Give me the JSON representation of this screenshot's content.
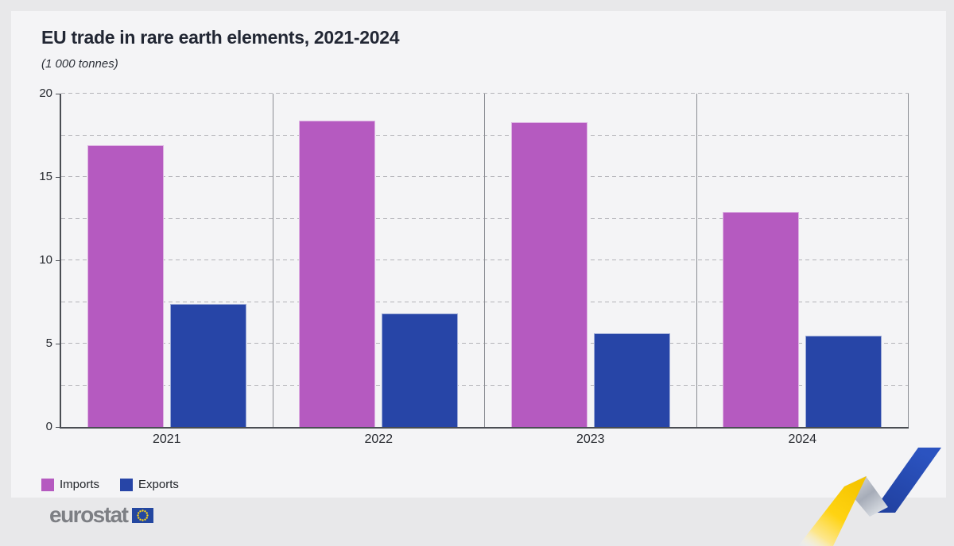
{
  "header": {
    "title": "EU trade in rare earth elements, 2021-2024",
    "subtitle": "(1 000 tonnes)"
  },
  "chart_data": {
    "type": "bar",
    "categories": [
      "2021",
      "2022",
      "2023",
      "2024"
    ],
    "series": [
      {
        "name": "Imports",
        "color": "#b55ac0",
        "values": [
          16.9,
          18.4,
          18.3,
          12.9
        ]
      },
      {
        "name": "Exports",
        "color": "#2745a7",
        "values": [
          7.4,
          6.8,
          5.6,
          5.5
        ]
      }
    ],
    "title": "EU trade in rare earth elements, 2021-2024",
    "subtitle": "(1 000 tonnes)",
    "xlabel": "",
    "ylabel": "",
    "ylim": [
      0,
      20
    ],
    "yticks": [
      0,
      5,
      10,
      15,
      20
    ],
    "grid_step": 2.5,
    "grid": "horizontal-dashed",
    "legend_position": "bottom-left",
    "layout": "grouped bars, one bordered panel per year"
  },
  "footer": {
    "logo_text": "eurostat"
  },
  "palette": {
    "imports": "#b55ac0",
    "exports": "#2745a7",
    "eu_flag_blue": "#2447a0",
    "eu_star_yellow": "#ffd617",
    "page_background": "#e8e8ea",
    "card_background": "#f4f4f6",
    "axis": "#4a4d53"
  }
}
